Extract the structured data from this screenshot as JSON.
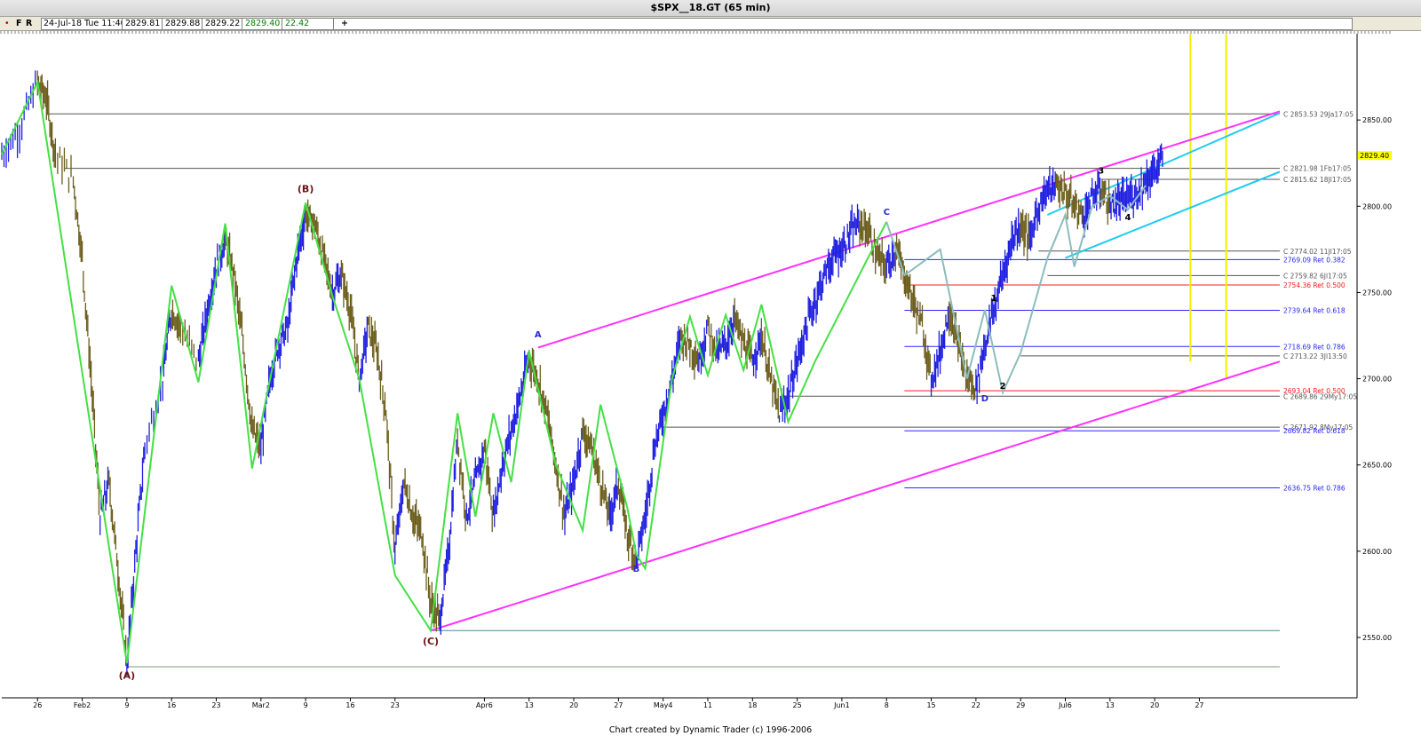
{
  "window": {
    "title": "$SPX__18.GT (65 min)"
  },
  "toolbar": {
    "dot": "•",
    "btn_f": "F",
    "btn_r": "R",
    "datetime": "24-Jul-18 Tue 11:40",
    "open": "2829.81",
    "high": "2829.88",
    "low": "2829.22",
    "close": "2829.40",
    "change": "22.42",
    "plus": "+"
  },
  "footer": {
    "credit": "Chart created by Dynamic Trader  (c) 1996-2006"
  },
  "chart_data": {
    "type": "bar",
    "ylim": [
      2515,
      2900
    ],
    "x_range": [
      0,
      143
    ],
    "y_ticks": [
      2550,
      2600,
      2650,
      2700,
      2750,
      2800,
      2850
    ],
    "x_ticks": [
      {
        "label": "26",
        "x": 4
      },
      {
        "label": "Feb2",
        "x": 9
      },
      {
        "label": "9",
        "x": 14
      },
      {
        "label": "16",
        "x": 19
      },
      {
        "label": "23",
        "x": 24
      },
      {
        "label": "Mar2",
        "x": 29
      },
      {
        "label": "9",
        "x": 34
      },
      {
        "label": "16",
        "x": 39
      },
      {
        "label": "23",
        "x": 44
      },
      {
        "label": "Apr6",
        "x": 54
      },
      {
        "label": "13",
        "x": 59
      },
      {
        "label": "20",
        "x": 64
      },
      {
        "label": "27",
        "x": 69
      },
      {
        "label": "May4",
        "x": 74
      },
      {
        "label": "11",
        "x": 79
      },
      {
        "label": "18",
        "x": 84
      },
      {
        "label": "25",
        "x": 89
      },
      {
        "label": "Jun1",
        "x": 94
      },
      {
        "label": "8",
        "x": 99
      },
      {
        "label": "15",
        "x": 104
      },
      {
        "label": "22",
        "x": 109
      },
      {
        "label": "29",
        "x": 114
      },
      {
        "label": "Jul6",
        "x": 119
      },
      {
        "label": "13",
        "x": 124
      },
      {
        "label": "20",
        "x": 129
      },
      {
        "label": "27",
        "x": 134
      }
    ],
    "last_price": "2829.40",
    "price_path": [
      {
        "x": 0,
        "y": 2830
      },
      {
        "x": 2,
        "y": 2845
      },
      {
        "x": 4,
        "y": 2872
      },
      {
        "x": 5,
        "y": 2862
      },
      {
        "x": 6,
        "y": 2830
      },
      {
        "x": 8,
        "y": 2815
      },
      {
        "x": 9,
        "y": 2770
      },
      {
        "x": 10,
        "y": 2700
      },
      {
        "x": 11,
        "y": 2620
      },
      {
        "x": 12,
        "y": 2640
      },
      {
        "x": 13,
        "y": 2590
      },
      {
        "x": 14,
        "y": 2535
      },
      {
        "x": 15,
        "y": 2600
      },
      {
        "x": 16,
        "y": 2660
      },
      {
        "x": 18,
        "y": 2700
      },
      {
        "x": 19,
        "y": 2740
      },
      {
        "x": 20,
        "y": 2730
      },
      {
        "x": 22,
        "y": 2710
      },
      {
        "x": 23,
        "y": 2740
      },
      {
        "x": 24,
        "y": 2765
      },
      {
        "x": 25,
        "y": 2780
      },
      {
        "x": 26,
        "y": 2760
      },
      {
        "x": 27,
        "y": 2720
      },
      {
        "x": 28,
        "y": 2670
      },
      {
        "x": 29,
        "y": 2660
      },
      {
        "x": 30,
        "y": 2700
      },
      {
        "x": 31,
        "y": 2720
      },
      {
        "x": 32,
        "y": 2730
      },
      {
        "x": 33,
        "y": 2770
      },
      {
        "x": 34,
        "y": 2795
      },
      {
        "x": 35,
        "y": 2790
      },
      {
        "x": 36,
        "y": 2770
      },
      {
        "x": 37,
        "y": 2750
      },
      {
        "x": 38,
        "y": 2760
      },
      {
        "x": 39,
        "y": 2740
      },
      {
        "x": 40,
        "y": 2700
      },
      {
        "x": 41,
        "y": 2730
      },
      {
        "x": 42,
        "y": 2715
      },
      {
        "x": 43,
        "y": 2680
      },
      {
        "x": 44,
        "y": 2600
      },
      {
        "x": 45,
        "y": 2640
      },
      {
        "x": 46,
        "y": 2620
      },
      {
        "x": 47,
        "y": 2610
      },
      {
        "x": 48,
        "y": 2570
      },
      {
        "x": 49,
        "y": 2560
      },
      {
        "x": 50,
        "y": 2600
      },
      {
        "x": 51,
        "y": 2665
      },
      {
        "x": 52,
        "y": 2620
      },
      {
        "x": 53,
        "y": 2640
      },
      {
        "x": 54,
        "y": 2660
      },
      {
        "x": 55,
        "y": 2620
      },
      {
        "x": 56,
        "y": 2650
      },
      {
        "x": 57,
        "y": 2670
      },
      {
        "x": 58,
        "y": 2690
      },
      {
        "x": 59,
        "y": 2712
      },
      {
        "x": 60,
        "y": 2700
      },
      {
        "x": 61,
        "y": 2680
      },
      {
        "x": 62,
        "y": 2650
      },
      {
        "x": 63,
        "y": 2620
      },
      {
        "x": 64,
        "y": 2640
      },
      {
        "x": 65,
        "y": 2670
      },
      {
        "x": 66,
        "y": 2660
      },
      {
        "x": 67,
        "y": 2640
      },
      {
        "x": 68,
        "y": 2620
      },
      {
        "x": 69,
        "y": 2640
      },
      {
        "x": 70,
        "y": 2610
      },
      {
        "x": 71,
        "y": 2595
      },
      {
        "x": 72,
        "y": 2620
      },
      {
        "x": 73,
        "y": 2660
      },
      {
        "x": 74,
        "y": 2680
      },
      {
        "x": 75,
        "y": 2700
      },
      {
        "x": 76,
        "y": 2725
      },
      {
        "x": 77,
        "y": 2720
      },
      {
        "x": 78,
        "y": 2710
      },
      {
        "x": 79,
        "y": 2730
      },
      {
        "x": 80,
        "y": 2715
      },
      {
        "x": 81,
        "y": 2720
      },
      {
        "x": 82,
        "y": 2735
      },
      {
        "x": 83,
        "y": 2720
      },
      {
        "x": 84,
        "y": 2710
      },
      {
        "x": 85,
        "y": 2725
      },
      {
        "x": 86,
        "y": 2700
      },
      {
        "x": 87,
        "y": 2680
      },
      {
        "x": 88,
        "y": 2690
      },
      {
        "x": 89,
        "y": 2710
      },
      {
        "x": 90,
        "y": 2730
      },
      {
        "x": 91,
        "y": 2745
      },
      {
        "x": 92,
        "y": 2760
      },
      {
        "x": 93,
        "y": 2770
      },
      {
        "x": 94,
        "y": 2775
      },
      {
        "x": 95,
        "y": 2785
      },
      {
        "x": 96,
        "y": 2790
      },
      {
        "x": 97,
        "y": 2785
      },
      {
        "x": 98,
        "y": 2770
      },
      {
        "x": 99,
        "y": 2765
      },
      {
        "x": 100,
        "y": 2775
      },
      {
        "x": 101,
        "y": 2760
      },
      {
        "x": 102,
        "y": 2745
      },
      {
        "x": 103,
        "y": 2730
      },
      {
        "x": 104,
        "y": 2700
      },
      {
        "x": 105,
        "y": 2715
      },
      {
        "x": 106,
        "y": 2740
      },
      {
        "x": 107,
        "y": 2720
      },
      {
        "x": 108,
        "y": 2700
      },
      {
        "x": 109,
        "y": 2695
      },
      {
        "x": 110,
        "y": 2720
      },
      {
        "x": 111,
        "y": 2740
      },
      {
        "x": 112,
        "y": 2760
      },
      {
        "x": 113,
        "y": 2780
      },
      {
        "x": 114,
        "y": 2790
      },
      {
        "x": 115,
        "y": 2780
      },
      {
        "x": 116,
        "y": 2800
      },
      {
        "x": 117,
        "y": 2810
      },
      {
        "x": 118,
        "y": 2812
      },
      {
        "x": 119,
        "y": 2808
      },
      {
        "x": 120,
        "y": 2800
      },
      {
        "x": 121,
        "y": 2795
      },
      {
        "x": 122,
        "y": 2805
      },
      {
        "x": 123,
        "y": 2810
      },
      {
        "x": 124,
        "y": 2800
      },
      {
        "x": 125,
        "y": 2802
      },
      {
        "x": 126,
        "y": 2805
      },
      {
        "x": 127,
        "y": 2808
      },
      {
        "x": 128,
        "y": 2815
      },
      {
        "x": 129,
        "y": 2820
      },
      {
        "x": 130,
        "y": 2829
      }
    ],
    "h_levels": [
      {
        "label": "C 2853.53 29Ja17:05",
        "y": 2853.53,
        "x1": 5,
        "color": "#555555"
      },
      {
        "label": "C 2821.98 1Fb17:05",
        "y": 2821.98,
        "x1": 7,
        "color": "#555555"
      },
      {
        "label": "C 2815.62 18Jl17:05",
        "y": 2815.62,
        "x1": 123,
        "color": "#555555"
      },
      {
        "label": "C 2774.02 11Jl17:05",
        "y": 2774.02,
        "x1": 116,
        "color": "#555555"
      },
      {
        "label": "2769.09 Ret 0.382",
        "y": 2769.09,
        "x1": 101,
        "color": "#2828ff"
      },
      {
        "label": "C 2759.82 6Jl17:05",
        "y": 2759.82,
        "x1": 117,
        "color": "#555555"
      },
      {
        "label": "2754.36 Ret 0.500",
        "y": 2754.36,
        "x1": 101,
        "color": "#ff1a1a"
      },
      {
        "label": "2739.64 Ret 0.618",
        "y": 2739.64,
        "x1": 101,
        "color": "#2828ff"
      },
      {
        "label": "2718.69 Ret 0.786",
        "y": 2718.69,
        "x1": 101,
        "color": "#2828ff"
      },
      {
        "label": "C 2713.22 3Jl13:50",
        "y": 2713.22,
        "x1": 114,
        "color": "#555555"
      },
      {
        "label": "2693.04 Ret 0.500",
        "y": 2693.04,
        "x1": 101,
        "color": "#ff1a1a"
      },
      {
        "label": "C 2689.86 29My17:05",
        "y": 2689.86,
        "x1": 88,
        "color": "#555555"
      },
      {
        "label": "C 2671.92 8My17:05",
        "y": 2671.92,
        "x1": 74,
        "color": "#555555"
      },
      {
        "label": "2669.82 Ret 0.618",
        "y": 2669.82,
        "x1": 101,
        "color": "#2828ff"
      },
      {
        "label": "2636.75 Ret 0.786",
        "y": 2636.75,
        "x1": 101,
        "color": "#2828ff"
      },
      {
        "label": "",
        "y": 2554,
        "x1": 48,
        "color": "#4e8a8a"
      },
      {
        "label": "",
        "y": 2533,
        "x1": 14,
        "color": "#7a9a7a"
      }
    ],
    "zigzag": [
      {
        "x": 0,
        "y": 2830
      },
      {
        "x": 4,
        "y": 2872
      },
      {
        "x": 14,
        "y": 2535
      },
      {
        "x": 19,
        "y": 2754
      },
      {
        "x": 22,
        "y": 2698
      },
      {
        "x": 25,
        "y": 2790
      },
      {
        "x": 28,
        "y": 2648
      },
      {
        "x": 34,
        "y": 2802
      },
      {
        "x": 37,
        "y": 2748
      },
      {
        "x": 40,
        "y": 2700
      },
      {
        "x": 44,
        "y": 2586
      },
      {
        "x": 48,
        "y": 2554
      },
      {
        "x": 51,
        "y": 2680
      },
      {
        "x": 53,
        "y": 2620
      },
      {
        "x": 55,
        "y": 2680
      },
      {
        "x": 57,
        "y": 2640
      },
      {
        "x": 59,
        "y": 2716
      },
      {
        "x": 62,
        "y": 2650
      },
      {
        "x": 65,
        "y": 2612
      },
      {
        "x": 67,
        "y": 2685
      },
      {
        "x": 70,
        "y": 2625
      },
      {
        "x": 71,
        "y": 2598
      },
      {
        "x": 72,
        "y": 2590
      },
      {
        "x": 75,
        "y": 2700
      },
      {
        "x": 77,
        "y": 2736
      },
      {
        "x": 79,
        "y": 2702
      },
      {
        "x": 81,
        "y": 2737
      },
      {
        "x": 83,
        "y": 2705
      },
      {
        "x": 85,
        "y": 2743
      },
      {
        "x": 88,
        "y": 2675
      },
      {
        "x": 91,
        "y": 2710
      },
      {
        "x": 99,
        "y": 2791
      }
    ],
    "zigzag2": [
      {
        "x": 99,
        "y": 2791
      },
      {
        "x": 101,
        "y": 2760
      },
      {
        "x": 105,
        "y": 2775
      },
      {
        "x": 108,
        "y": 2700
      },
      {
        "x": 110,
        "y": 2740
      },
      {
        "x": 112,
        "y": 2692
      },
      {
        "x": 114,
        "y": 2715
      },
      {
        "x": 117,
        "y": 2770
      },
      {
        "x": 119,
        "y": 2795
      },
      {
        "x": 120,
        "y": 2765
      },
      {
        "x": 122,
        "y": 2800
      },
      {
        "x": 124,
        "y": 2806
      },
      {
        "x": 126,
        "y": 2798
      },
      {
        "x": 128,
        "y": 2812
      }
    ],
    "channel_lines": [
      {
        "x1": 60,
        "y1": 2718,
        "x2": 143,
        "y2": 2855,
        "color": "#ff30ff"
      },
      {
        "x1": 48,
        "y1": 2554,
        "x2": 143,
        "y2": 2710,
        "color": "#ff30ff"
      },
      {
        "x1": 117,
        "y1": 2795,
        "x2": 143,
        "y2": 2854,
        "color": "#1ecbef"
      },
      {
        "x1": 119,
        "y1": 2770,
        "x2": 143,
        "y2": 2820,
        "color": "#1ecbef"
      }
    ],
    "vertical_lines": [
      {
        "x": 133,
        "y1": 2710,
        "y2": 2900,
        "color": "#f0f000"
      },
      {
        "x": 137,
        "y1": 2700,
        "y2": 2900,
        "color": "#f0f000"
      }
    ],
    "wave_labels": [
      {
        "text": "(A)",
        "x": 14,
        "y": 2526,
        "color": "#6b1313"
      },
      {
        "text": "(B)",
        "x": 34,
        "y": 2808,
        "color": "#6b1313"
      },
      {
        "text": "(C)",
        "x": 48,
        "y": 2546,
        "color": "#6b1313"
      },
      {
        "text": "A",
        "x": 60,
        "y": 2724,
        "color": "#2a2ad0"
      },
      {
        "text": "B",
        "x": 71,
        "y": 2588,
        "color": "#2a2ad0"
      },
      {
        "text": "C",
        "x": 99,
        "y": 2795,
        "color": "#2a2ad0"
      },
      {
        "text": "D",
        "x": 110,
        "y": 2687,
        "color": "#2a2ad0"
      },
      {
        "text": "1",
        "x": 111,
        "y": 2745,
        "color": "#000000"
      },
      {
        "text": "2",
        "x": 112,
        "y": 2694,
        "color": "#000000"
      },
      {
        "text": "3",
        "x": 123,
        "y": 2819,
        "color": "#000000"
      },
      {
        "text": "4",
        "x": 126,
        "y": 2792,
        "color": "#000000"
      }
    ]
  }
}
